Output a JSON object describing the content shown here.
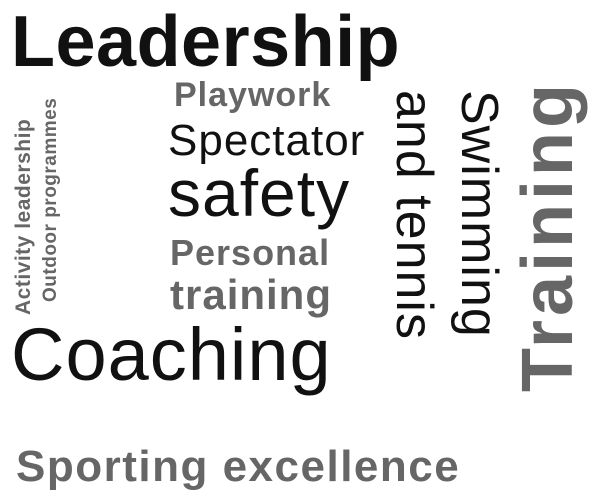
{
  "words": {
    "leadership": "Leadership",
    "playwork": "Playwork",
    "spectator": "Spectator",
    "safety": "safety",
    "personal": "Personal",
    "training_personal": "training",
    "coaching": "Coaching",
    "and_tennis": "and tennis",
    "swimming": "Swimming",
    "training_vertical": "Training",
    "activity_leadership": "Activity leadership",
    "outdoor_programmes": "Outdoor programmes",
    "sporting_excellence": "Sporting excellence"
  },
  "colors": {
    "background": "#ffffff",
    "dark_text": "#111111",
    "grey_text": "#666666"
  }
}
